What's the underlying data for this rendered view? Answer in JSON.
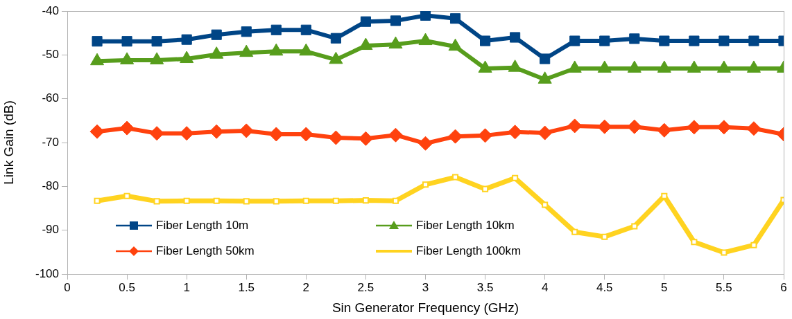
{
  "chart_data": {
    "type": "line",
    "xlabel": "Sin Generator Frequency (GHz)",
    "ylabel": "Link Gain (dB)",
    "x": [
      0.25,
      0.5,
      0.75,
      1,
      1.25,
      1.5,
      1.75,
      2,
      2.25,
      2.5,
      2.75,
      3,
      3.25,
      3.5,
      3.75,
      4,
      4.25,
      4.5,
      4.75,
      5,
      5.25,
      5.5,
      5.75,
      6
    ],
    "xlim": [
      0,
      6
    ],
    "xticks": [
      0,
      0.5,
      1,
      1.5,
      2,
      2.5,
      3,
      3.5,
      4,
      4.5,
      5,
      5.5,
      6
    ],
    "ylim": [
      -100,
      -40
    ],
    "yticks": [
      -100,
      -90,
      -80,
      -70,
      -60,
      -50,
      -40
    ],
    "grid": false,
    "legend": "bottom left",
    "line_style": "solid",
    "series": [
      {
        "name": "Fiber Length 10m",
        "color": "#004586",
        "marker": "square",
        "values": [
          -46.9,
          -46.9,
          -46.9,
          -46.5,
          -45.4,
          -44.7,
          -44.3,
          -44.3,
          -46.2,
          -42.4,
          -42.2,
          -41,
          -41.7,
          -46.8,
          -46,
          -50.9,
          -46.8,
          -46.8,
          -46.3,
          -46.8,
          -46.8,
          -46.8,
          -46.8,
          -46.8
        ]
      },
      {
        "name": "Fiber Length 10km",
        "color": "#579d1c",
        "marker": "triangle",
        "values": [
          -51.4,
          -51.2,
          -51.2,
          -50.9,
          -49.9,
          -49.5,
          -49.2,
          -49.2,
          -51.1,
          -47.9,
          -47.6,
          -46.8,
          -48.1,
          -53.1,
          -52.9,
          -55.6,
          -53.1,
          -53.1,
          -53.1,
          -53.1,
          -53.1,
          -53.1,
          -53.1,
          -53.1
        ]
      },
      {
        "name": "Fiber Length 50km",
        "color": "#ff420e",
        "marker": "diamond",
        "values": [
          -67.5,
          -66.7,
          -67.9,
          -67.9,
          -67.5,
          -67.3,
          -68.1,
          -68.1,
          -68.9,
          -69.1,
          -68.3,
          -70.2,
          -68.6,
          -68.4,
          -67.6,
          -67.8,
          -66.2,
          -66.4,
          -66.4,
          -67.2,
          -66.5,
          -66.5,
          -66.8,
          -68.1
        ]
      },
      {
        "name": "Fiber Length 100km",
        "color": "#ffd320",
        "marker": "rect",
        "values": [
          -83.3,
          -82.2,
          -83.4,
          -83.3,
          -83.3,
          -83.4,
          -83.4,
          -83.3,
          -83.3,
          -83.2,
          -83.3,
          -79.6,
          -77.9,
          -80.6,
          -78.1,
          -84.2,
          -90.4,
          -91.5,
          -89.1,
          -82.2,
          -92.7,
          -95.1,
          -93.4,
          -83.1
        ]
      }
    ]
  }
}
